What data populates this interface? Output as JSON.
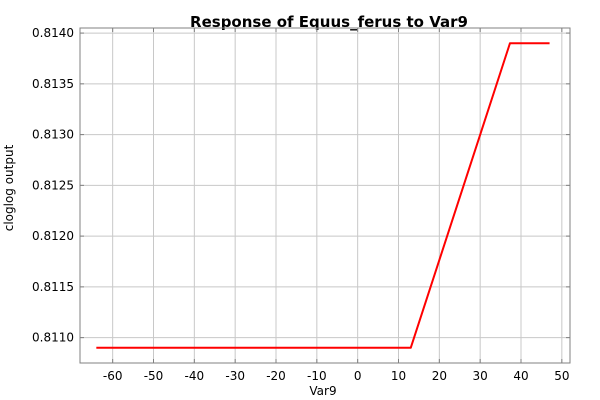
{
  "chart_data": {
    "type": "line",
    "title": "Response of Equus_ferus to Var9",
    "xlabel": "Var9",
    "ylabel": "cloglog output",
    "xlim": [
      -68,
      52
    ],
    "ylim": [
      0.81075,
      0.81405
    ],
    "xticks": [
      -60,
      -50,
      -40,
      -30,
      -20,
      -10,
      0,
      10,
      20,
      30,
      40,
      50
    ],
    "xtick_labels": [
      "-60",
      "-50",
      "-40",
      "-30",
      "-20",
      "-10",
      "0",
      "10",
      "20",
      "30",
      "40",
      "50"
    ],
    "yticks": [
      0.811,
      0.8115,
      0.812,
      0.8125,
      0.813,
      0.8135,
      0.814
    ],
    "ytick_labels": [
      "0.8110",
      "0.8115",
      "0.8120",
      "0.8125",
      "0.8130",
      "0.8135",
      "0.8140"
    ],
    "grid": true,
    "series": [
      {
        "color": "#ff0000",
        "x": [
          -64,
          13,
          37.3,
          47
        ],
        "y": [
          0.8109,
          0.8109,
          0.8139,
          0.8139
        ]
      }
    ]
  }
}
